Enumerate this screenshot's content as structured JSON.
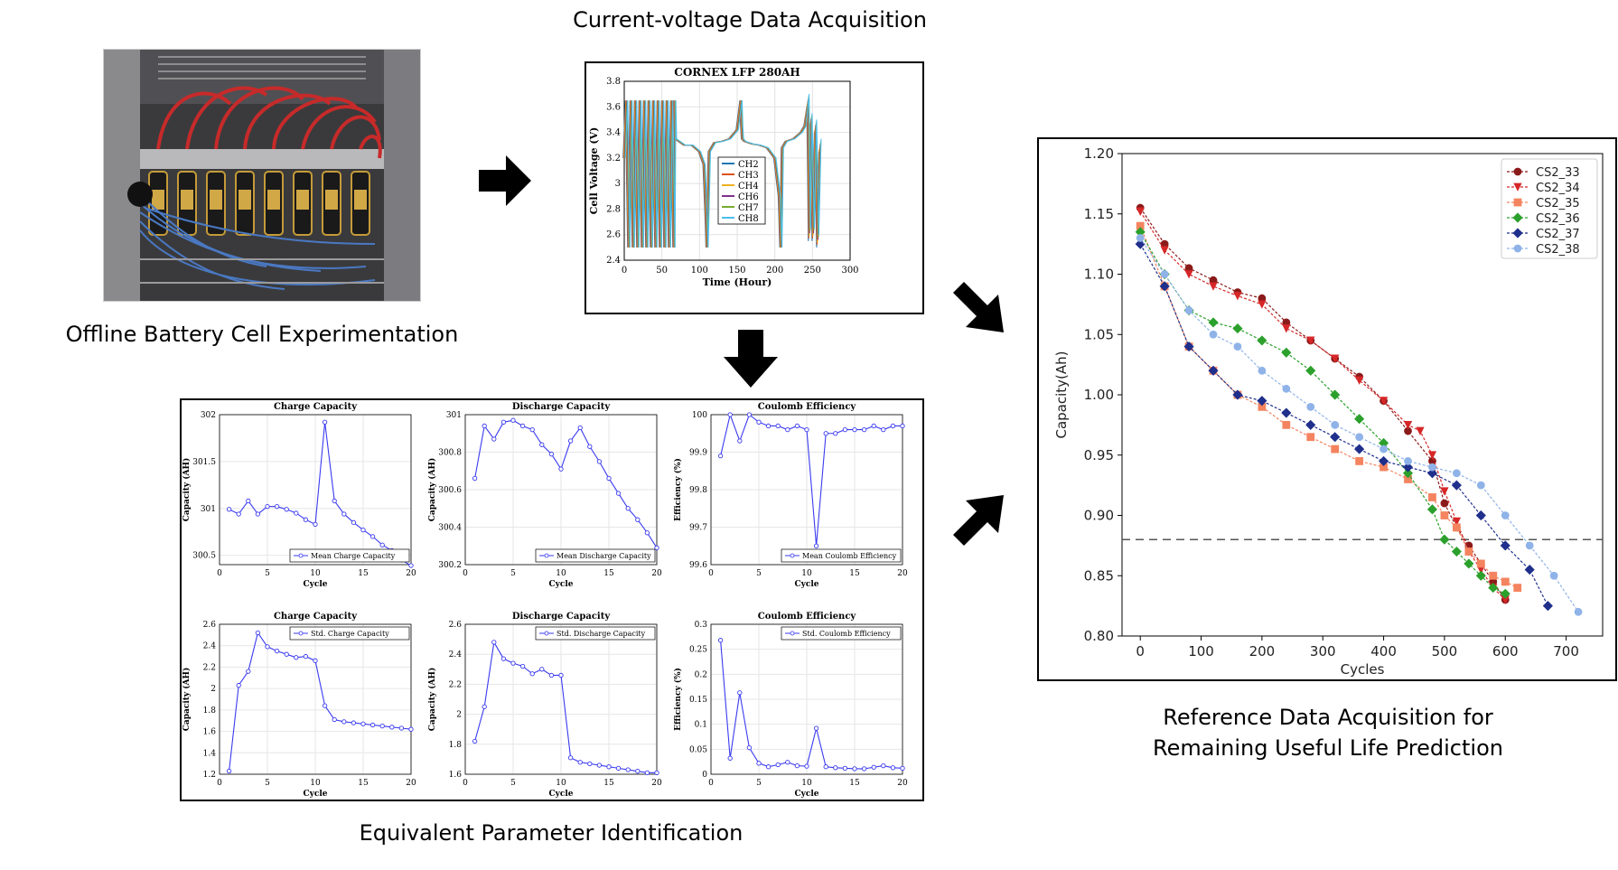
{
  "labels": {
    "offline": "Offline Battery Cell Experimentation",
    "acquisition": "Current-voltage Data Acquisition",
    "equivalent": "Equivalent Parameter Identification",
    "reference_line1": "Reference Data Acquisition for",
    "reference_line2": "Remaining Useful Life Prediction"
  },
  "icons": {
    "arrow_color": "#000000",
    "photo": "battery-test-rig-photo"
  },
  "chart_data": [
    {
      "id": "voltage",
      "type": "line",
      "title": "CORNEX LFP 280AH",
      "xlabel": "Time (Hour)",
      "ylabel": "Cell Voltage (V)",
      "xlim": [
        0,
        300
      ],
      "ylim": [
        2.4,
        3.8
      ],
      "xticks": [
        "0",
        "50",
        "100",
        "150",
        "200",
        "250",
        "300"
      ],
      "yticks": [
        "2.4",
        "2.6",
        "2.8",
        "3",
        "3.2",
        "3.4",
        "3.6",
        "3.8"
      ],
      "grid": true,
      "legend_position": "center",
      "series": [
        {
          "name": "CH2",
          "color": "#1f77b4"
        },
        {
          "name": "CH3",
          "color": "#d95319"
        },
        {
          "name": "CH4",
          "color": "#edb120"
        },
        {
          "name": "CH6",
          "color": "#7e2f8e"
        },
        {
          "name": "CH7",
          "color": "#77ac30"
        },
        {
          "name": "CH8",
          "color": "#4dbeee"
        }
      ],
      "x": [
        0,
        3,
        6,
        9,
        12,
        15,
        18,
        21,
        24,
        27,
        30,
        33,
        36,
        39,
        42,
        45,
        48,
        51,
        54,
        57,
        60,
        63,
        66,
        67,
        68,
        80,
        90,
        100,
        106,
        109,
        110,
        113,
        120,
        130,
        140,
        150,
        155,
        156,
        157,
        160,
        170,
        180,
        190,
        200,
        206,
        208,
        210,
        215,
        225,
        235,
        240,
        244,
        246,
        248,
        251,
        254,
        257,
        260
      ],
      "values": [
        3.2,
        3.65,
        2.5,
        3.65,
        2.5,
        3.65,
        2.5,
        3.65,
        2.5,
        3.65,
        2.5,
        3.65,
        2.5,
        3.65,
        2.5,
        3.65,
        2.5,
        3.65,
        2.5,
        3.65,
        2.5,
        3.65,
        2.5,
        3.65,
        3.35,
        3.3,
        3.3,
        3.25,
        3.15,
        2.7,
        2.5,
        3.25,
        3.32,
        3.33,
        3.35,
        3.42,
        3.65,
        3.45,
        3.35,
        3.33,
        3.31,
        3.3,
        3.28,
        3.2,
        2.9,
        2.5,
        3.28,
        3.33,
        3.35,
        3.4,
        3.45,
        3.65,
        2.6,
        3.5,
        2.6,
        3.45,
        2.55,
        3.3
      ]
    },
    {
      "id": "mean-charge",
      "type": "line",
      "title": "Charge Capacity",
      "xlabel": "Cycle",
      "ylabel": "Capacity (AH)",
      "legend": "Mean Charge Capacity",
      "legend_position": "bottom-right",
      "xlim": [
        0,
        20
      ],
      "ylim": [
        300.4,
        302
      ],
      "xticks": [
        "0",
        "5",
        "10",
        "15",
        "20"
      ],
      "yticks": [
        "300.5",
        "301",
        "301.5",
        "302"
      ],
      "x": [
        1,
        2,
        3,
        4,
        5,
        6,
        7,
        8,
        9,
        10,
        11,
        12,
        13,
        14,
        15,
        16,
        17,
        18,
        19,
        20
      ],
      "values": [
        300.99,
        300.94,
        301.08,
        300.94,
        301.02,
        301.02,
        300.99,
        300.95,
        300.88,
        300.83,
        301.92,
        301.08,
        300.94,
        300.85,
        300.77,
        300.7,
        300.61,
        300.55,
        300.45,
        300.39
      ]
    },
    {
      "id": "mean-discharge",
      "type": "line",
      "title": "Discharge Capacity",
      "xlabel": "Cycle",
      "ylabel": "Capacity (AH)",
      "legend": "Mean Discharge Capacity",
      "legend_position": "bottom-right",
      "xlim": [
        0,
        20
      ],
      "ylim": [
        300.2,
        301
      ],
      "xticks": [
        "0",
        "5",
        "10",
        "15",
        "20"
      ],
      "yticks": [
        "300.2",
        "300.4",
        "300.6",
        "300.8",
        "301"
      ],
      "x": [
        1,
        2,
        3,
        4,
        5,
        6,
        7,
        8,
        9,
        10,
        11,
        12,
        13,
        14,
        15,
        16,
        17,
        18,
        19,
        20
      ],
      "values": [
        300.66,
        300.94,
        300.87,
        300.96,
        300.97,
        300.94,
        300.92,
        300.84,
        300.79,
        300.71,
        300.86,
        300.93,
        300.83,
        300.75,
        300.66,
        300.58,
        300.5,
        300.44,
        300.37,
        300.29
      ]
    },
    {
      "id": "mean-coulomb",
      "type": "line",
      "title": "Coulomb Efficiency",
      "xlabel": "Cycle",
      "ylabel": "Efficiency (%)",
      "legend": "Mean Coulomb Efficiency",
      "legend_position": "bottom-right",
      "xlim": [
        0,
        20
      ],
      "ylim": [
        99.6,
        100
      ],
      "xticks": [
        "0",
        "5",
        "10",
        "15",
        "20"
      ],
      "yticks": [
        "99.6",
        "99.7",
        "99.8",
        "99.9",
        "100"
      ],
      "x": [
        1,
        2,
        3,
        4,
        5,
        6,
        7,
        8,
        9,
        10,
        11,
        12,
        13,
        14,
        15,
        16,
        17,
        18,
        19,
        20
      ],
      "values": [
        99.89,
        100.0,
        99.93,
        100.0,
        99.98,
        99.97,
        99.97,
        99.96,
        99.97,
        99.96,
        99.65,
        99.95,
        99.95,
        99.96,
        99.96,
        99.96,
        99.97,
        99.96,
        99.97,
        99.97
      ]
    },
    {
      "id": "std-charge",
      "type": "line",
      "title": "Charge Capacity",
      "xlabel": "Cycle",
      "ylabel": "Capacity (AH)",
      "legend": "Std. Charge Capacity",
      "legend_position": "top-right",
      "xlim": [
        0,
        20
      ],
      "ylim": [
        1.2,
        2.6
      ],
      "xticks": [
        "0",
        "5",
        "10",
        "15",
        "20"
      ],
      "yticks": [
        "1.2",
        "1.4",
        "1.6",
        "1.8",
        "2",
        "2.2",
        "2.4",
        "2.6"
      ],
      "x": [
        1,
        2,
        3,
        4,
        5,
        6,
        7,
        8,
        9,
        10,
        11,
        12,
        13,
        14,
        15,
        16,
        17,
        18,
        19,
        20
      ],
      "values": [
        1.23,
        2.03,
        2.16,
        2.52,
        2.39,
        2.35,
        2.32,
        2.29,
        2.3,
        2.26,
        1.84,
        1.71,
        1.69,
        1.68,
        1.67,
        1.66,
        1.65,
        1.64,
        1.63,
        1.62
      ]
    },
    {
      "id": "std-discharge",
      "type": "line",
      "title": "Discharge Capacity",
      "xlabel": "Cycle",
      "ylabel": "Capacity (AH)",
      "legend": "Std. Discharge Capacity",
      "legend_position": "top-right",
      "xlim": [
        0,
        20
      ],
      "ylim": [
        1.6,
        2.6
      ],
      "xticks": [
        "0",
        "5",
        "10",
        "15",
        "20"
      ],
      "yticks": [
        "1.6",
        "1.8",
        "2",
        "2.2",
        "2.4",
        "2.6"
      ],
      "x": [
        1,
        2,
        3,
        4,
        5,
        6,
        7,
        8,
        9,
        10,
        11,
        12,
        13,
        14,
        15,
        16,
        17,
        18,
        19,
        20
      ],
      "values": [
        1.82,
        2.05,
        2.48,
        2.37,
        2.34,
        2.32,
        2.27,
        2.3,
        2.26,
        2.26,
        1.71,
        1.68,
        1.67,
        1.66,
        1.65,
        1.64,
        1.63,
        1.62,
        1.61,
        1.61
      ]
    },
    {
      "id": "std-coulomb",
      "type": "line",
      "title": "Coulomb Efficiency",
      "xlabel": "Cycle",
      "ylabel": "Efficiency (%)",
      "legend": "Std. Coulomb Efficiency",
      "legend_position": "top-right",
      "xlim": [
        0,
        20
      ],
      "ylim": [
        0,
        0.3
      ],
      "xticks": [
        "0",
        "5",
        "10",
        "15",
        "20"
      ],
      "yticks": [
        "0",
        "0.05",
        "0.1",
        "0.15",
        "0.2",
        "0.25",
        "0.3"
      ],
      "x": [
        1,
        2,
        3,
        4,
        5,
        6,
        7,
        8,
        9,
        10,
        11,
        12,
        13,
        14,
        15,
        16,
        17,
        18,
        19,
        20
      ],
      "values": [
        0.268,
        0.032,
        0.163,
        0.053,
        0.022,
        0.015,
        0.019,
        0.024,
        0.017,
        0.016,
        0.092,
        0.015,
        0.013,
        0.012,
        0.011,
        0.011,
        0.014,
        0.017,
        0.013,
        0.012
      ]
    },
    {
      "id": "rul",
      "type": "scatter",
      "xlabel": "Cycles",
      "ylabel": "Capacity(Ah)",
      "xlim": [
        -30,
        760
      ],
      "ylim": [
        0.8,
        1.2
      ],
      "xticks": [
        "0",
        "100",
        "200",
        "300",
        "400",
        "500",
        "600",
        "700"
      ],
      "yticks": [
        "0.80",
        "0.85",
        "0.90",
        "0.95",
        "1.00",
        "1.05",
        "1.10",
        "1.15",
        "1.20"
      ],
      "threshold": 0.88,
      "legend_position": "top-right",
      "series": [
        {
          "name": "CS2_33",
          "color": "#8b1a1a",
          "marker": "circle",
          "x": [
            0,
            40,
            80,
            120,
            160,
            200,
            240,
            280,
            320,
            360,
            400,
            440,
            480,
            500,
            520,
            540,
            560,
            580,
            600
          ],
          "values": [
            1.155,
            1.125,
            1.105,
            1.095,
            1.085,
            1.08,
            1.06,
            1.045,
            1.03,
            1.015,
            0.995,
            0.97,
            0.945,
            0.91,
            0.89,
            0.875,
            0.86,
            0.845,
            0.83
          ]
        },
        {
          "name": "CS2_34",
          "color": "#d62728",
          "marker": "triangle-down",
          "x": [
            0,
            40,
            80,
            120,
            160,
            200,
            240,
            280,
            320,
            360,
            400,
            440,
            460,
            480,
            500,
            520,
            540,
            560,
            580,
            600
          ],
          "values": [
            1.152,
            1.12,
            1.1,
            1.09,
            1.082,
            1.075,
            1.055,
            1.045,
            1.03,
            1.012,
            0.995,
            0.975,
            0.97,
            0.95,
            0.92,
            0.895,
            0.87,
            0.855,
            0.84,
            0.83
          ]
        },
        {
          "name": "CS2_35",
          "color": "#f4845f",
          "marker": "square",
          "x": [
            0,
            40,
            80,
            120,
            160,
            200,
            240,
            280,
            320,
            360,
            400,
            440,
            480,
            500,
            520,
            540,
            560,
            580,
            600,
            620
          ],
          "values": [
            1.14,
            1.09,
            1.04,
            1.02,
            1.0,
            0.99,
            0.975,
            0.965,
            0.955,
            0.945,
            0.94,
            0.93,
            0.915,
            0.9,
            0.89,
            0.87,
            0.86,
            0.85,
            0.845,
            0.84
          ]
        },
        {
          "name": "CS2_36",
          "color": "#2ca02c",
          "marker": "diamond",
          "x": [
            0,
            40,
            80,
            120,
            160,
            200,
            240,
            280,
            320,
            360,
            400,
            440,
            480,
            500,
            520,
            540,
            560,
            580,
            600
          ],
          "values": [
            1.135,
            1.1,
            1.07,
            1.06,
            1.055,
            1.045,
            1.035,
            1.02,
            1.0,
            0.98,
            0.96,
            0.935,
            0.905,
            0.88,
            0.87,
            0.86,
            0.85,
            0.84,
            0.835
          ]
        },
        {
          "name": "CS2_37",
          "color": "#1f2f8b",
          "marker": "diamond",
          "x": [
            0,
            40,
            80,
            120,
            160,
            200,
            240,
            280,
            320,
            360,
            400,
            440,
            480,
            520,
            560,
            600,
            640,
            670
          ],
          "values": [
            1.125,
            1.09,
            1.04,
            1.02,
            1.0,
            0.995,
            0.985,
            0.975,
            0.965,
            0.955,
            0.945,
            0.94,
            0.935,
            0.925,
            0.9,
            0.875,
            0.855,
            0.825
          ]
        },
        {
          "name": "CS2_38",
          "color": "#8fb3e8",
          "marker": "circle",
          "x": [
            0,
            40,
            80,
            120,
            160,
            200,
            240,
            280,
            320,
            360,
            400,
            440,
            480,
            520,
            560,
            600,
            640,
            680,
            720
          ],
          "values": [
            1.13,
            1.1,
            1.07,
            1.05,
            1.04,
            1.02,
            1.005,
            0.99,
            0.975,
            0.965,
            0.955,
            0.945,
            0.94,
            0.935,
            0.925,
            0.9,
            0.875,
            0.85,
            0.82
          ]
        }
      ]
    }
  ]
}
